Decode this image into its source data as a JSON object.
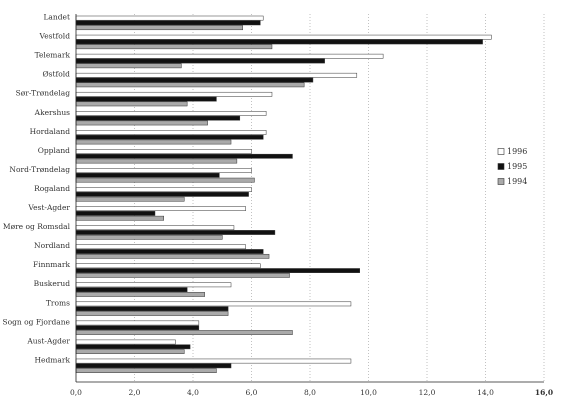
{
  "chart_data": {
    "type": "bar",
    "orientation": "horizontal",
    "categories": [
      "Landet",
      "Vestfold",
      "Telemark",
      "Østfold",
      "Sør-Trøndelag",
      "Akershus",
      "Hordaland",
      "Oppland",
      "Nord-Trøndelag",
      "Rogaland",
      "Vest-Agder",
      "Møre og Romsdal",
      "Nordland",
      "Finnmark",
      "Buskerud",
      "Troms",
      "Sogn og Fjordane",
      "Aust-Agder",
      "Hedmark"
    ],
    "series": [
      {
        "name": "1996",
        "color": "#ffffff",
        "values": [
          6.4,
          14.2,
          10.5,
          9.6,
          6.7,
          6.5,
          6.5,
          6.0,
          6.0,
          6.0,
          5.8,
          5.4,
          5.8,
          6.3,
          5.3,
          9.4,
          4.2,
          3.4,
          9.4
        ]
      },
      {
        "name": "1995",
        "color": "#111111",
        "values": [
          6.3,
          13.9,
          8.5,
          8.1,
          4.8,
          5.6,
          6.4,
          7.4,
          4.9,
          5.9,
          2.7,
          6.8,
          6.4,
          9.7,
          3.8,
          5.2,
          4.2,
          3.9,
          5.3
        ]
      },
      {
        "name": "1994",
        "color": "#aaaaaa",
        "values": [
          5.7,
          6.7,
          3.6,
          7.8,
          3.8,
          4.5,
          5.3,
          5.5,
          6.1,
          3.7,
          3.0,
          5.0,
          6.6,
          7.3,
          4.4,
          5.2,
          7.4,
          3.7,
          4.8
        ]
      }
    ],
    "x_ticks": [
      "0,0",
      "2,0",
      "4,0",
      "6,0",
      "8,0",
      "10,0",
      "12,0",
      "14,0",
      "16,0"
    ],
    "xlim": [
      0,
      16
    ],
    "grid": "vertical dotted",
    "legend_position": "right"
  }
}
